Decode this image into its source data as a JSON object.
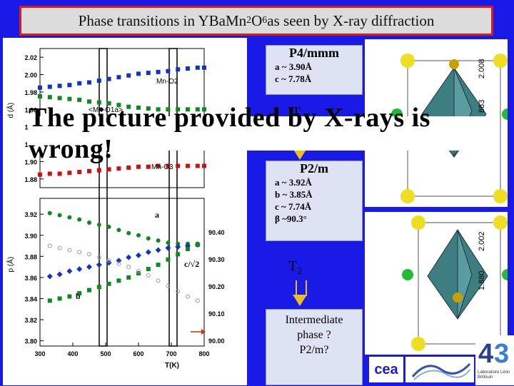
{
  "title": {
    "text_pre": "Phase transitions in YBaMn",
    "sub1": "2",
    "text_mid": "O",
    "sub2": "6",
    "text_post": " as seen by X-ray diffraction"
  },
  "banner": "The picture provided by X-rays is wrong!",
  "phase1": {
    "name": "P4/mmm",
    "a": "a ~ 3.90Å",
    "c": "c ~ 7.78Å"
  },
  "t1_label": "T",
  "phase2": {
    "name": "P2/m",
    "a": "a ~ 3.92Å",
    "b": "b ~ 3.85Å",
    "c": "c ~ 7.74Å",
    "beta": "β ~90.3°"
  },
  "t2_label": "T",
  "t2_sub": "2",
  "intermediate": {
    "l1": "Intermediate",
    "l2": "phase ?",
    "l3": "P2/m?"
  },
  "crystal1_labels": {
    "v1": "2.008",
    "v2": "883"
  },
  "crystal2_labels": {
    "v1": "2.002",
    "v2": "1.880"
  },
  "logos": {
    "cea": "cea",
    "lab": "Laboratoire Léon Brillouin"
  },
  "colors": {
    "background": "#1a1ae6",
    "title_border": "#d81c1c",
    "arrow": "#e8c020",
    "blue_series": "#1133cc",
    "green_series": "#118822",
    "red_series": "#cc1111",
    "grey_series": "#999999"
  },
  "chart_data": [
    {
      "type": "scatter",
      "title": "",
      "xlabel": "T(K)",
      "ylabel": "d (Å)",
      "x_ticks": [
        "300",
        "400",
        "500",
        "600",
        "700",
        "800"
      ],
      "y_ticks": [
        "1.88",
        "1.90",
        "1.92",
        "1.94",
        "1.96",
        "1.98",
        "2.00",
        "2.02"
      ],
      "ylim": [
        1.87,
        2.03
      ],
      "annotations": [
        "Mn-O2",
        "<Mn-O1a>",
        "Mn-O3"
      ],
      "series": [
        {
          "name": "Mn-O2",
          "x": [
            300,
            330,
            360,
            390,
            420,
            450,
            480,
            510,
            540,
            570,
            600,
            630,
            660,
            690,
            720,
            750,
            780,
            800
          ],
          "y": [
            1.985,
            1.986,
            1.987,
            1.988,
            1.99,
            1.991,
            1.993,
            1.995,
            1.997,
            1.999,
            2.001,
            2.002,
            2.003,
            2.004,
            2.006,
            2.007,
            2.008,
            2.008
          ]
        },
        {
          "name": "<Mn-O1a>",
          "x": [
            300,
            330,
            360,
            390,
            420,
            450,
            480,
            510,
            540,
            570,
            600,
            630,
            660,
            690,
            720,
            750,
            780,
            800
          ],
          "y": [
            1.975,
            1.974,
            1.973,
            1.972,
            1.971,
            1.969,
            1.968,
            1.967,
            1.965,
            1.963,
            1.962,
            1.961,
            1.96,
            1.96,
            1.96,
            1.96,
            1.96,
            1.96
          ]
        },
        {
          "name": "Mn-O3",
          "x": [
            300,
            330,
            360,
            390,
            420,
            450,
            480,
            510,
            540,
            570,
            600,
            630,
            660,
            690,
            720,
            750,
            780,
            800
          ],
          "y": [
            1.885,
            1.886,
            1.886,
            1.887,
            1.888,
            1.889,
            1.89,
            1.891,
            1.892,
            1.893,
            1.894,
            1.894,
            1.895,
            1.895,
            1.895,
            1.895,
            1.895,
            1.895
          ]
        }
      ]
    },
    {
      "type": "scatter",
      "title": "",
      "xlabel": "T(K)",
      "ylabel": "p (Å)",
      "x_ticks": [
        "300",
        "400",
        "500",
        "600",
        "700",
        "800"
      ],
      "y_ticks": [
        "3.80",
        "3.82",
        "3.84",
        "3.86",
        "3.88",
        "3.90",
        "3.92"
      ],
      "ylim": [
        3.795,
        3.935
      ],
      "right_ticks": [
        "90.00",
        "90.10",
        "90.20",
        "90.30",
        "90.40"
      ],
      "right_label": "β",
      "annotations": [
        "a",
        "c/√2",
        "b"
      ],
      "series": [
        {
          "name": "a",
          "x": [
            330,
            360,
            390,
            420,
            450,
            480,
            510,
            540,
            570,
            600,
            630,
            660,
            690,
            720,
            750,
            780
          ],
          "y": [
            3.921,
            3.919,
            3.917,
            3.915,
            3.912,
            3.91,
            3.908,
            3.905,
            3.902,
            3.9,
            3.897,
            3.895,
            3.893,
            3.892,
            3.892,
            3.892
          ]
        },
        {
          "name": "c/√2",
          "x": [
            330,
            360,
            390,
            420,
            450,
            480,
            510,
            540,
            570,
            600,
            630,
            660,
            690,
            720,
            750,
            780
          ],
          "y": [
            3.861,
            3.863,
            3.866,
            3.868,
            3.87,
            3.872,
            3.874,
            3.876,
            3.879,
            3.881,
            3.884,
            3.886,
            3.888,
            3.889,
            3.89,
            3.891
          ]
        },
        {
          "name": "b",
          "x": [
            330,
            360,
            390,
            420,
            450,
            480,
            510,
            540,
            570,
            600,
            630,
            660,
            690,
            720,
            750,
            780
          ],
          "y": [
            3.838,
            3.84,
            3.842,
            3.845,
            3.848,
            3.851,
            3.854,
            3.857,
            3.86,
            3.864,
            3.868,
            3.872,
            3.877,
            3.882,
            3.887,
            3.891
          ]
        },
        {
          "name": "β",
          "x": [
            330,
            360,
            390,
            420,
            450,
            480,
            510,
            540,
            570,
            600,
            630,
            660,
            690,
            720,
            750,
            780
          ],
          "y": [
            3.89,
            3.888,
            3.886,
            3.884,
            3.882,
            3.879,
            3.876,
            3.873,
            3.87,
            3.866,
            3.862,
            3.857,
            3.852,
            3.847,
            3.842,
            3.838
          ]
        }
      ]
    }
  ]
}
